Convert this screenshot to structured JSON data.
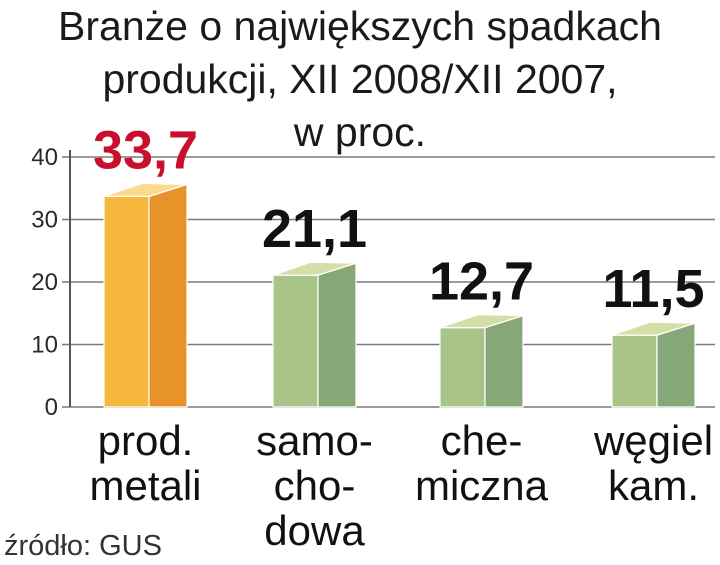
{
  "chart_data": {
    "type": "bar",
    "title_lines": [
      "Branże o największych spadkach",
      "produkcji, XII 2008/XII 2007,",
      "w proc."
    ],
    "categories": [
      {
        "lines": [
          "prod.",
          "metali"
        ]
      },
      {
        "lines": [
          "samo-",
          "cho-",
          "dowa"
        ]
      },
      {
        "lines": [
          "che-",
          "miczna"
        ]
      },
      {
        "lines": [
          "węgiel",
          "kam."
        ]
      }
    ],
    "values": [
      33.7,
      21.1,
      12.7,
      11.5
    ],
    "value_labels": [
      "33,7",
      "21,1",
      "12,7",
      "11,5"
    ],
    "y_ticks": [
      "0",
      "10",
      "20",
      "30",
      "40"
    ],
    "ylim": [
      0,
      40
    ],
    "grid": true,
    "colors": {
      "highlight_front": "#f5b83c",
      "highlight_side": "#e8922a",
      "highlight_top": "#fcd98c",
      "normal_front": "#a9c488",
      "normal_side": "#86a878",
      "normal_top": "#d4dfa8",
      "highlight_label": "#c8102e",
      "normal_label": "#111111"
    },
    "highlight_index": 0,
    "source": "źródło: GUS"
  }
}
